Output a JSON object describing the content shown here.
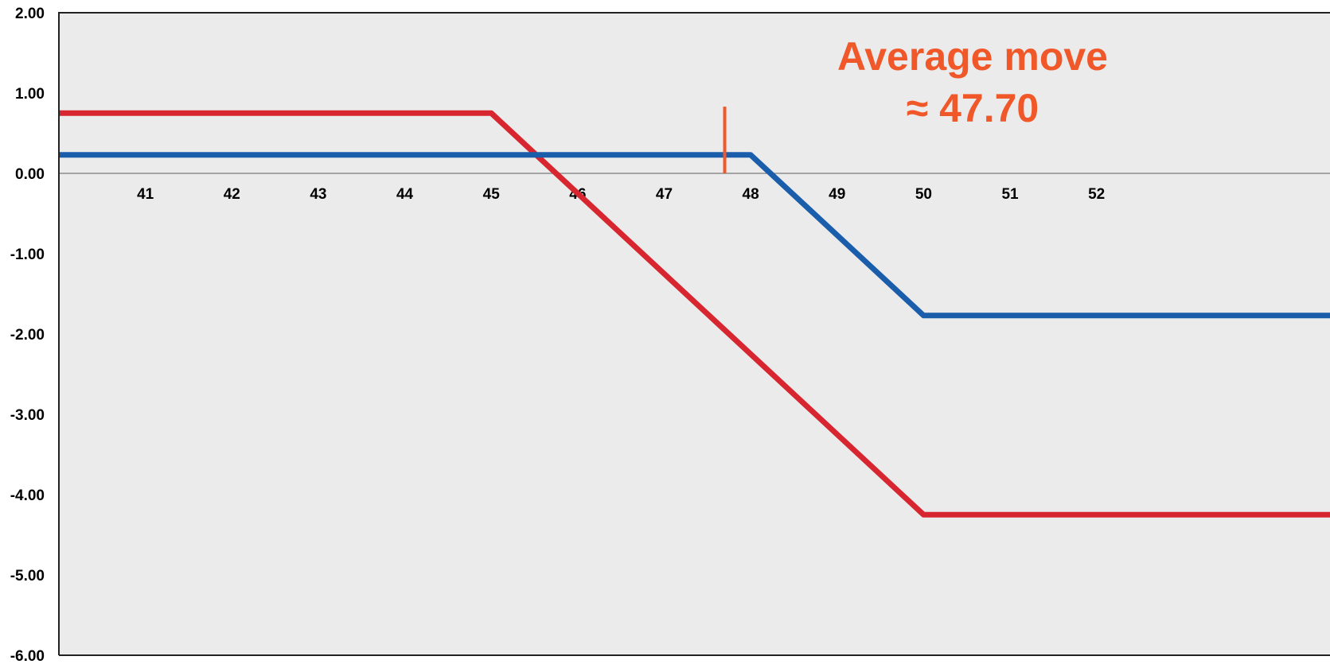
{
  "chart_data": {
    "type": "line",
    "title": "",
    "xlabel": "",
    "ylabel": "",
    "xlim": [
      40,
      54.7
    ],
    "ylim": [
      -6,
      2
    ],
    "grid": false,
    "legend": "none",
    "y_ticks": [
      2,
      1,
      0,
      -1,
      -2,
      -3,
      -4,
      -5,
      -6
    ],
    "y_tick_labels": [
      "2.00",
      "1.00",
      "0.00",
      "-1.00",
      "-2.00",
      "-3.00",
      "-4.00",
      "-5.00",
      "-6.00"
    ],
    "x_ticks": [
      41,
      42,
      43,
      44,
      45,
      46,
      47,
      48,
      49,
      50,
      51,
      52
    ],
    "x_tick_labels": [
      "41",
      "42",
      "43",
      "44",
      "45",
      "46",
      "47",
      "48",
      "49",
      "50",
      "51",
      "52"
    ],
    "series": [
      {
        "color": "#D7262F",
        "points": [
          [
            40,
            0.75
          ],
          [
            45,
            0.75
          ],
          [
            50,
            -4.25
          ],
          [
            54.7,
            -4.25
          ]
        ]
      },
      {
        "color": "#1A5EAB",
        "points": [
          [
            40,
            0.23
          ],
          [
            48,
            0.23
          ],
          [
            50,
            -1.77
          ],
          [
            54.7,
            -1.77
          ]
        ]
      }
    ],
    "marker": {
      "x": 47.7,
      "y_from": 0.0,
      "y_to": 0.83,
      "color": "#F0582A"
    },
    "annotation": {
      "line1": "Average move",
      "line2": "≈ 47.70",
      "color": "#F0582A"
    },
    "background": "#EBEBEB"
  }
}
